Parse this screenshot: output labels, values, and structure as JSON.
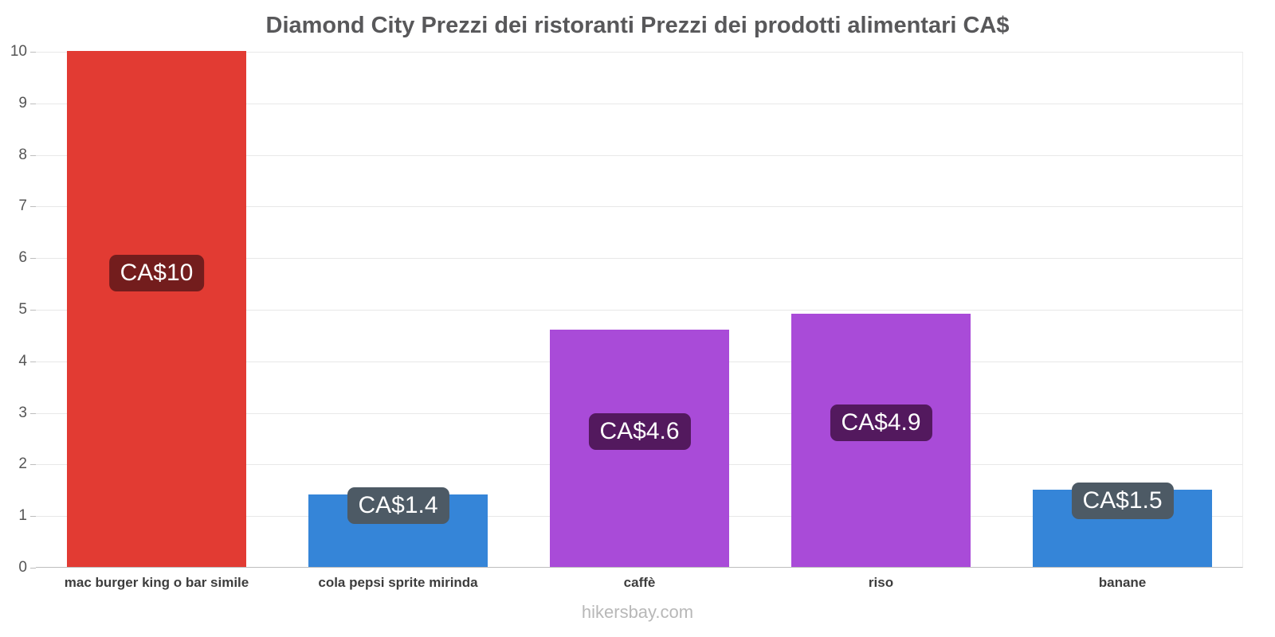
{
  "chart_data": {
    "type": "bar",
    "title": "Diamond City Prezzi dei ristoranti Prezzi dei prodotti alimentari CA$",
    "categories": [
      "mac burger king o bar simile",
      "cola pepsi sprite mirinda",
      "caffè",
      "riso",
      "banane"
    ],
    "values": [
      10,
      1.4,
      4.6,
      4.9,
      1.5
    ],
    "labels": [
      "CA$10",
      "CA$1.4",
      "CA$4.6",
      "CA$4.9",
      "CA$1.5"
    ],
    "bar_colors": [
      "#e23b33",
      "#3585d8",
      "#a94bd8",
      "#a94bd8",
      "#3585d8"
    ],
    "badge_colors": [
      "#731d1d",
      "#4d5a65",
      "#53195e",
      "#53195e",
      "#4d5a65"
    ],
    "currency": "CA$",
    "xlabel": "",
    "ylabel": "",
    "ylim": [
      0,
      10
    ],
    "y_ticks": [
      0,
      1,
      2,
      3,
      4,
      5,
      6,
      7,
      8,
      9,
      10
    ],
    "grid": "horizontal",
    "legend": "none"
  },
  "footer": {
    "text": "hikersbay.com"
  }
}
